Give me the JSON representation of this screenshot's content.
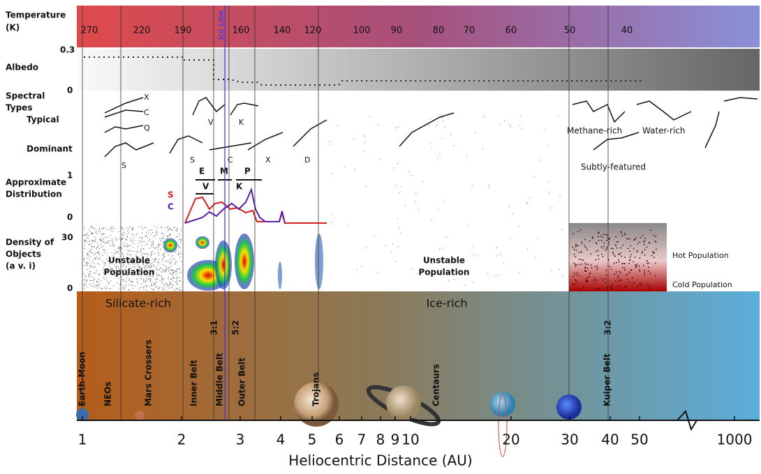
{
  "temperature": {
    "label_lines": [
      "Temperature",
      "(K)"
    ],
    "ticks": [
      "270",
      "220",
      "190",
      "160",
      "140",
      "120",
      "100",
      "90",
      "80",
      "70",
      "60",
      "50",
      "40"
    ],
    "ice_line": "Ice Line"
  },
  "albedo": {
    "label": "Albedo",
    "max": "0.3",
    "min": "0"
  },
  "spectral": {
    "label_lines": [
      "Spectral",
      "Types"
    ],
    "typical": "Typical",
    "dominant": "Dominant",
    "types": [
      "X",
      "C",
      "Q",
      "S",
      "V",
      "K",
      "S",
      "C",
      "X",
      "D"
    ],
    "outer": [
      "Methane-rich",
      "Water-rich",
      "Subtly-featured"
    ]
  },
  "distribution": {
    "label_lines": [
      "Approximate",
      "Distribution"
    ],
    "max": "1",
    "min": "0",
    "classes": [
      "E",
      "M",
      "P",
      "V",
      "K"
    ],
    "s": "S",
    "c": "C"
  },
  "density": {
    "label_lines": [
      "Density of",
      "Objects",
      "(a v. i)"
    ],
    "max": "30",
    "min": "0",
    "notes": [
      "Unstable",
      "Population",
      "Unstable",
      "Population",
      "Hot Population",
      "Cold Population"
    ]
  },
  "composition": [
    "Silicate-rich",
    "Ice-rich"
  ],
  "regions": [
    "Earth-Moon",
    "NEOs",
    "Mars Crossers",
    "Inner Belt",
    "Middle Belt",
    "Outer Belt",
    "Trojans",
    "Centaurs",
    "Kuiper Belt"
  ],
  "resonances": [
    "3:1",
    "5:2",
    "3:2"
  ],
  "axis": {
    "title": "Heliocentric Distance (AU)",
    "ticks": [
      "1",
      "2",
      "3",
      "4",
      "5",
      "6",
      "7",
      "8",
      "9",
      "10",
      "20",
      "30",
      "40",
      "50",
      "1000"
    ]
  }
}
